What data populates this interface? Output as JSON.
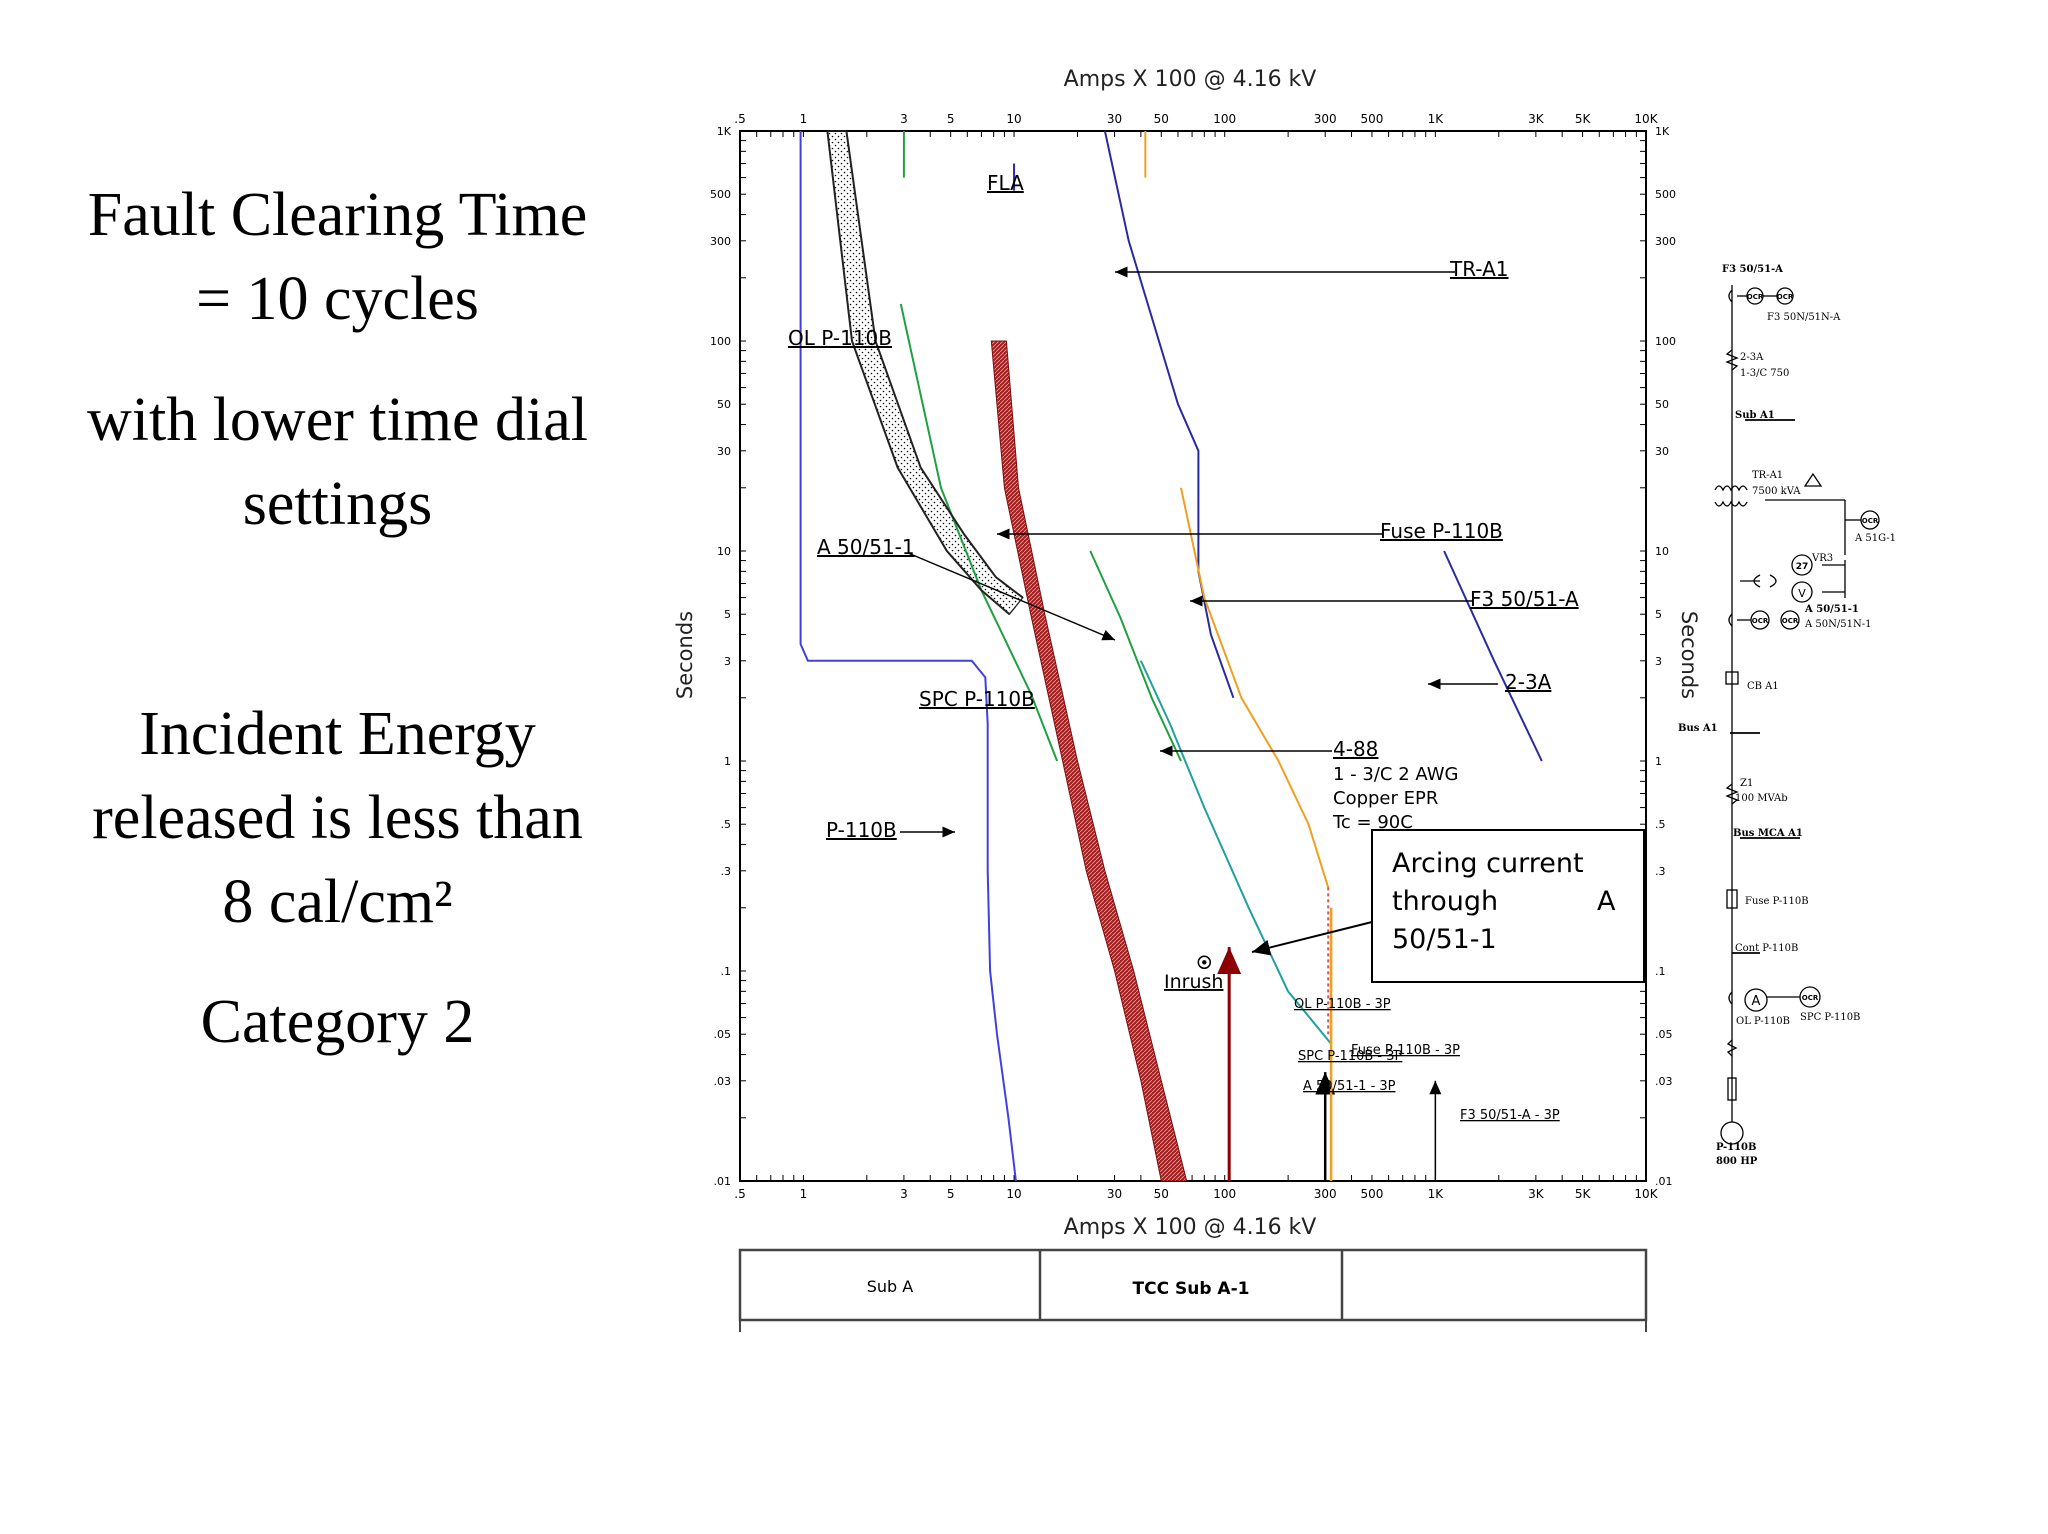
{
  "slide": {
    "heading_line1": "Fault Clearing Time",
    "heading_line2": "= 10 cycles",
    "sub_line1": "with lower time dial",
    "sub_line2": "settings",
    "energy_line1": "Incident Energy",
    "energy_line2": "released is less than",
    "energy_line3": "8 cal/cm²",
    "category": "Category 2"
  },
  "chart_data": {
    "type": "line",
    "x_scale": "log",
    "y_scale": "log",
    "xlabel": "Amps  X  100 @ 4.16 kV",
    "ylabel": "Seconds",
    "xlim": [
      0.5,
      10000
    ],
    "ylim": [
      0.01,
      1000
    ],
    "x_ticks": [
      {
        "v": 0.5,
        "label": ".5"
      },
      {
        "v": 1,
        "label": "1"
      },
      {
        "v": 3,
        "label": "3"
      },
      {
        "v": 5,
        "label": "5"
      },
      {
        "v": 10,
        "label": "10"
      },
      {
        "v": 30,
        "label": "30"
      },
      {
        "v": 50,
        "label": "50"
      },
      {
        "v": 100,
        "label": "100"
      },
      {
        "v": 300,
        "label": "300"
      },
      {
        "v": 500,
        "label": "500"
      },
      {
        "v": 1000,
        "label": "1K"
      },
      {
        "v": 3000,
        "label": "3K"
      },
      {
        "v": 5000,
        "label": "5K"
      },
      {
        "v": 10000,
        "label": "10K"
      }
    ],
    "y_ticks": [
      {
        "v": 0.01,
        "label": ".01"
      },
      {
        "v": 0.03,
        "label": ".03"
      },
      {
        "v": 0.05,
        "label": ".05"
      },
      {
        "v": 0.1,
        "label": ".1"
      },
      {
        "v": 0.3,
        "label": ".3"
      },
      {
        "v": 0.5,
        "label": ".5"
      },
      {
        "v": 1,
        "label": "1"
      },
      {
        "v": 3,
        "label": "3"
      },
      {
        "v": 5,
        "label": "5"
      },
      {
        "v": 10,
        "label": "10"
      },
      {
        "v": 30,
        "label": "30"
      },
      {
        "v": 50,
        "label": "50"
      },
      {
        "v": 100,
        "label": "100"
      },
      {
        "v": 300,
        "label": "300"
      },
      {
        "v": 500,
        "label": "500"
      },
      {
        "v": 1000,
        "label": "1K"
      }
    ],
    "grid": false,
    "series": [
      {
        "color": "#4040e0",
        "points": [
          [
            0.97,
            1000
          ],
          [
            0.97,
            3.6
          ],
          [
            1.05,
            3.0
          ],
          [
            6.3,
            3.0
          ],
          [
            7.3,
            2.5
          ],
          [
            7.5,
            1.5
          ],
          [
            7.5,
            0.3
          ],
          [
            7.7,
            0.1
          ],
          [
            8.3,
            0.05
          ],
          [
            9.4,
            0.02
          ],
          [
            10.2,
            0.01
          ]
        ]
      },
      {
        "color": "#2a2aa0",
        "points": [
          [
            27,
            1000
          ],
          [
            35,
            300
          ],
          [
            60,
            50
          ],
          [
            75,
            30
          ],
          [
            75,
            8
          ],
          [
            86,
            4
          ],
          [
            110,
            2
          ]
        ]
      },
      {
        "color": "#2a2aa0",
        "points": [
          [
            1100,
            10
          ],
          [
            1900,
            3
          ],
          [
            3200,
            1
          ]
        ]
      },
      {
        "color": "#f0a020",
        "points": [
          [
            62,
            20
          ],
          [
            80,
            6
          ],
          [
            120,
            2
          ],
          [
            180,
            1
          ],
          [
            250,
            0.5
          ],
          [
            310,
            0.25
          ]
        ]
      },
      {
        "color": "#20a0a0",
        "points": [
          [
            40,
            3
          ],
          [
            55,
            1.5
          ],
          [
            80,
            0.6
          ],
          [
            130,
            0.2
          ],
          [
            200,
            0.08
          ],
          [
            320,
            0.045
          ]
        ]
      },
      {
        "color": "#20a040",
        "points": [
          [
            2.9,
            150
          ],
          [
            4.5,
            20
          ],
          [
            7,
            6.5
          ],
          [
            12,
            2.1
          ],
          [
            16,
            1.0
          ]
        ]
      },
      {
        "color": "#20a040",
        "points": [
          [
            23,
            10
          ],
          [
            32,
            4.8
          ],
          [
            45,
            2.0
          ],
          [
            62,
            1.0
          ]
        ]
      },
      {
        "color": "#222222",
        "points": [
          [
            1.3,
            1000
          ],
          [
            1.7,
            100
          ],
          [
            2.8,
            25
          ],
          [
            4.8,
            10
          ],
          [
            7,
            6.5
          ],
          [
            9.5,
            5
          ]
        ]
      },
      {
        "color": "#222222",
        "points": [
          [
            1.6,
            1000
          ],
          [
            2.2,
            100
          ],
          [
            3.6,
            25
          ],
          [
            5.8,
            12
          ],
          [
            8.2,
            7.5
          ],
          [
            11,
            6
          ]
        ]
      }
    ],
    "annotations": [
      {
        "text": "FLA",
        "x": 10,
        "y": 600
      },
      {
        "text": "TR-A1",
        "x": 1500,
        "y": 200
      },
      {
        "text": "OL P-110B",
        "x": 1.1,
        "y": 100
      },
      {
        "text": "Fuse P-110B",
        "x": 800,
        "y": 10
      },
      {
        "text": "F3 50/51-A",
        "x": 1300,
        "y": 5
      },
      {
        "text": "A 50/51-1",
        "x": 2.1,
        "y": 10
      },
      {
        "text": "2-3A",
        "x": 3000,
        "y": 2
      },
      {
        "text": "SPC P-110B",
        "x": 5.5,
        "y": 2
      },
      {
        "text": "4-88",
        "x": 700,
        "y": 1
      },
      {
        "text": "1 - 3/C 2 AWG",
        "x": 1000,
        "y": 0.75
      },
      {
        "text": "Copper  EPR",
        "x": 1000,
        "y": 0.6
      },
      {
        "text": "Tc = 90C",
        "x": 1000,
        "y": 0.48
      },
      {
        "text": "P-110B",
        "x": 2,
        "y": 0.5
      },
      {
        "text": "Inrush",
        "x": 80,
        "y": 0.1
      },
      {
        "text": "OL P-110B - 3P",
        "x": 400,
        "y": 0.07
      },
      {
        "text": "SPC P-110B - 3P",
        "x": 300,
        "y": 0.045
      },
      {
        "text": "Fuse P-110B - 3P",
        "x": 600,
        "y": 0.045
      },
      {
        "text": "A 50/51-1 - 3P",
        "x": 450,
        "y": 0.03
      },
      {
        "text": "F3 50/51-A - 3P",
        "x": 2500,
        "y": 0.02
      },
      {
        "text": "Arcing current through A 50/51-1",
        "x": 1200,
        "y": 0.2
      }
    ],
    "title_block": {
      "left": "Sub A",
      "center": "TCC Sub A-1"
    }
  },
  "one_line": {
    "labels": [
      "F3 50/51-A",
      "F3 50N/51N-A",
      "2-3A",
      "1-3/C 750",
      "Sub A1",
      "TR-A1",
      "7500 kVA",
      "A 51G-1",
      "VR3",
      "A 50/51-1",
      "A 50N/51N-1",
      "CB A1",
      "Bus A1",
      "Z1",
      "100 MVAb",
      "Bus MCA A1",
      "Fuse P-110B",
      "Cont P-110B",
      "OL P-110B",
      "SPC P-110B",
      "P-110B",
      "800 HP"
    ],
    "relay_label": "OCR",
    "ammeter_label": "A",
    "volt_label": "V",
    "uv_label": "27"
  }
}
